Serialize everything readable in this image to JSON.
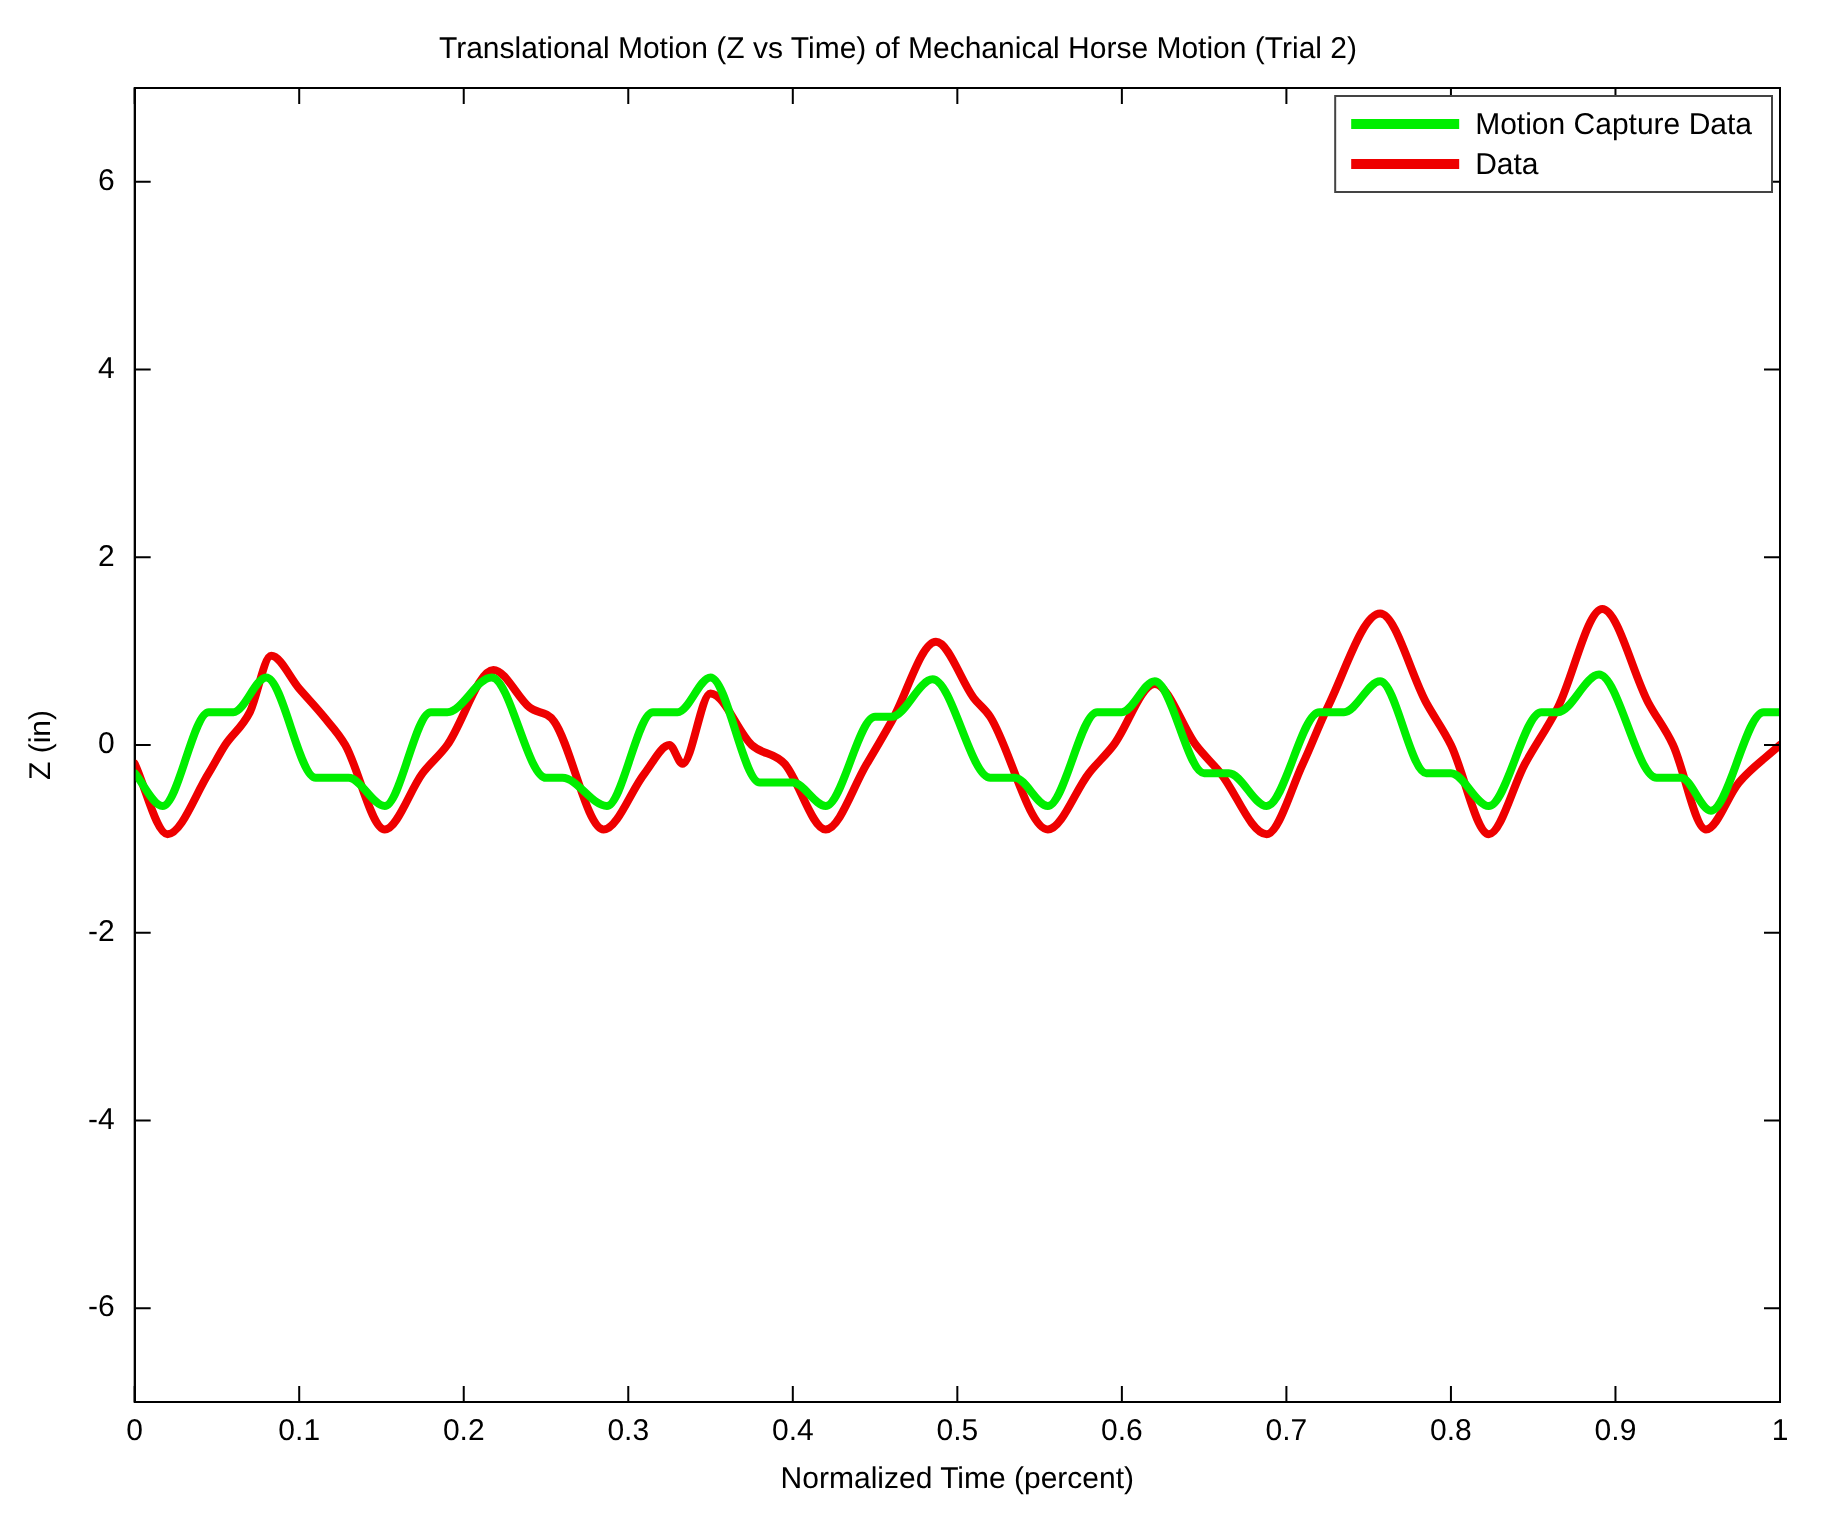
{
  "chart_data": {
    "type": "line",
    "title": "Translational Motion (Z vs Time) of Mechanical Horse Motion (Trial 2)",
    "xlabel": "Normalized Time (percent)",
    "ylabel": "Z (in)",
    "xlim": [
      0,
      1
    ],
    "ylim": [
      -7,
      7
    ],
    "xticks": [
      0,
      0.1,
      0.2,
      0.3,
      0.4,
      0.5,
      0.6,
      0.7,
      0.8,
      0.9,
      1
    ],
    "yticks": [
      -6,
      -4,
      -2,
      0,
      2,
      4,
      6
    ],
    "grid": false,
    "legend": "top right",
    "marker": "none",
    "line_style": "solid",
    "series": [
      {
        "name": "Motion Capture Data",
        "color": "#00ee00",
        "x": [
          0,
          0.017,
          0.045,
          0.06,
          0.08,
          0.11,
          0.13,
          0.152,
          0.18,
          0.19,
          0.217,
          0.25,
          0.26,
          0.287,
          0.315,
          0.33,
          0.35,
          0.38,
          0.4,
          0.42,
          0.45,
          0.46,
          0.485,
          0.52,
          0.535,
          0.555,
          0.585,
          0.6,
          0.62,
          0.65,
          0.665,
          0.688,
          0.72,
          0.735,
          0.757,
          0.785,
          0.8,
          0.823,
          0.855,
          0.865,
          0.89,
          0.925,
          0.94,
          0.958,
          0.99,
          1
        ],
        "values": [
          -0.3,
          -0.65,
          0.35,
          0.35,
          0.72,
          -0.35,
          -0.35,
          -0.65,
          0.35,
          0.35,
          0.72,
          -0.35,
          -0.35,
          -0.65,
          0.35,
          0.35,
          0.72,
          -0.4,
          -0.4,
          -0.65,
          0.3,
          0.3,
          0.7,
          -0.35,
          -0.35,
          -0.65,
          0.35,
          0.35,
          0.68,
          -0.3,
          -0.3,
          -0.65,
          0.35,
          0.35,
          0.68,
          -0.3,
          -0.3,
          -0.65,
          0.35,
          0.35,
          0.75,
          -0.35,
          -0.35,
          -0.7,
          0.35,
          0.35
        ]
      },
      {
        "name": "Data",
        "color": "#ee0000",
        "x": [
          0,
          0.02,
          0.045,
          0.055,
          0.07,
          0.083,
          0.1,
          0.115,
          0.128,
          0.152,
          0.175,
          0.19,
          0.218,
          0.24,
          0.255,
          0.285,
          0.31,
          0.325,
          0.333,
          0.35,
          0.375,
          0.395,
          0.42,
          0.445,
          0.46,
          0.487,
          0.51,
          0.52,
          0.555,
          0.58,
          0.595,
          0.62,
          0.645,
          0.66,
          0.688,
          0.71,
          0.725,
          0.757,
          0.785,
          0.8,
          0.823,
          0.845,
          0.865,
          0.892,
          0.92,
          0.935,
          0.955,
          0.975,
          1
        ],
        "values": [
          -0.2,
          -0.95,
          -0.3,
          0,
          0.35,
          0.95,
          0.6,
          0.3,
          0,
          -0.9,
          -0.3,
          0,
          0.8,
          0.4,
          0.25,
          -0.9,
          -0.3,
          0,
          -0.2,
          0.55,
          0,
          -0.2,
          -0.9,
          -0.2,
          0.25,
          1.1,
          0.5,
          0.3,
          -0.9,
          -0.3,
          0,
          0.65,
          0,
          -0.3,
          -0.95,
          -0.2,
          0.4,
          1.4,
          0.45,
          0,
          -0.95,
          -0.2,
          0.4,
          1.45,
          0.45,
          0,
          -0.9,
          -0.4,
          0
        ]
      }
    ]
  }
}
